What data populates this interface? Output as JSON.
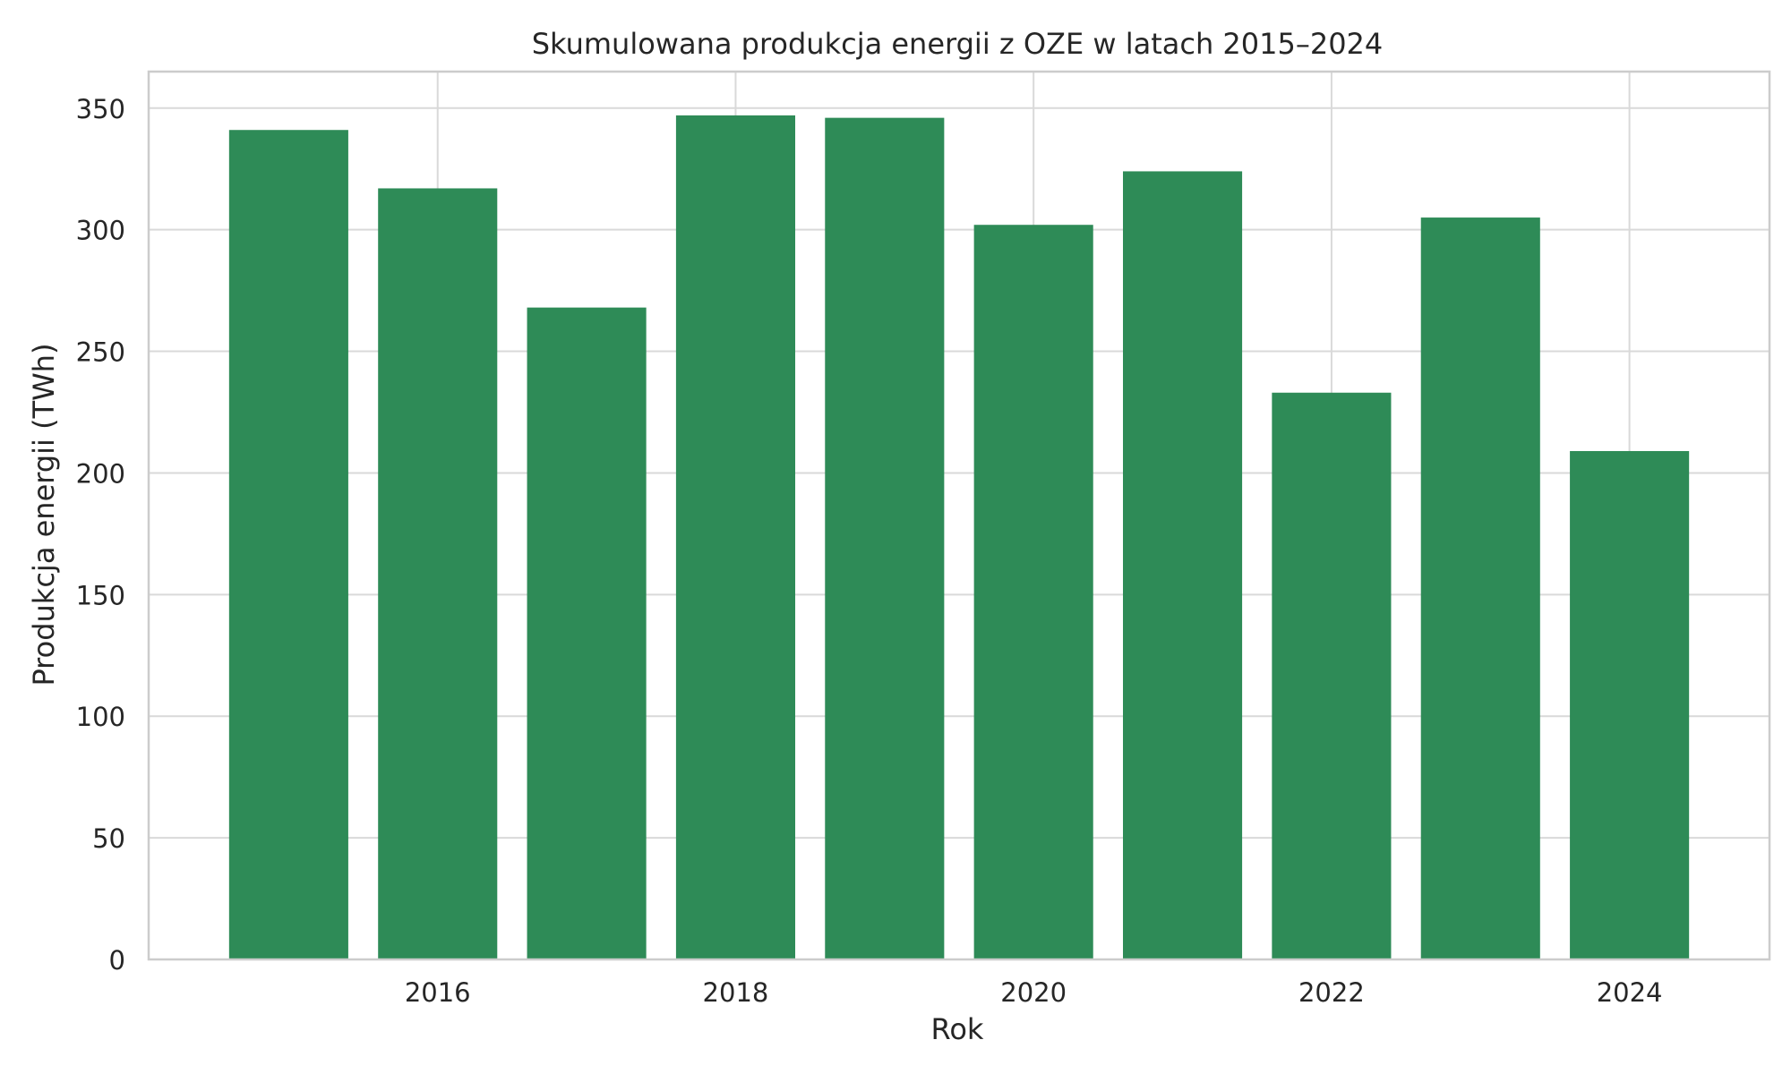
{
  "chart_data": {
    "type": "bar",
    "title": "Skumulowana produkcja energii z OZE w latach 2015–2024",
    "xlabel": "Rok",
    "ylabel": "Produkcja energii (TWh)",
    "x": [
      2015,
      2016,
      2017,
      2018,
      2019,
      2020,
      2021,
      2022,
      2023,
      2024
    ],
    "values": [
      341,
      317,
      268,
      347,
      346,
      302,
      324,
      233,
      305,
      209
    ],
    "xlim": [
      2014.06,
      2024.94
    ],
    "ylim": [
      0,
      365
    ],
    "xticks": [
      2016,
      2018,
      2020,
      2022,
      2024
    ],
    "yticks": [
      0,
      50,
      100,
      150,
      200,
      250,
      300,
      350
    ],
    "bar_color": "#2e8b57",
    "grid": true,
    "grid_color": "#d9d9d9",
    "axis_color": "#cccccc",
    "text_color": "#262626",
    "legend": "none"
  }
}
